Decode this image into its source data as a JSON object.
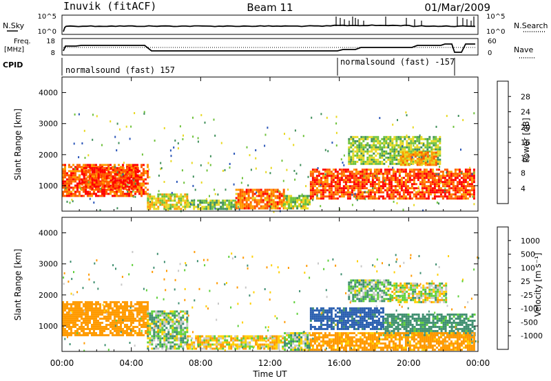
{
  "header": {
    "station": "Inuvik (fitACF)",
    "beam": "Beam 11",
    "date": "01/Mar/2009"
  },
  "noise_panel": {
    "left_label": "N.Sky",
    "right_label": "N.Search",
    "ticks": [
      "10^5",
      "10^0"
    ]
  },
  "freq_panel": {
    "left_label_1": "Freq.",
    "left_label_2": "[MHz]",
    "left_ticks": [
      "18",
      "8"
    ],
    "right_label": "Nave",
    "right_ticks": [
      "60",
      "0"
    ]
  },
  "cpid": {
    "label": "CPID",
    "mode_1": "normalsound (fast) 157",
    "mode_2": "normalsound (fast) -157"
  },
  "colors": {
    "power_scale": [
      "#1f3fff",
      "#2a55b8",
      "#3f8f5a",
      "#6fc23c",
      "#e8d820",
      "#ff9a00",
      "#ff5a00",
      "#ff0000"
    ],
    "velocity_scale": [
      "#1030c0",
      "#2a5fb0",
      "#3f8f70",
      "#5fd03a",
      "#c8c8c8",
      "#ffd000",
      "#ff9a00",
      "#ff6000",
      "#ff0000"
    ]
  },
  "chart_data": [
    {
      "type": "heatmap",
      "title": "",
      "xlabel": "Time UT",
      "ylabel": "Slant Range [km]",
      "xticks": [
        "00:00",
        "04:00",
        "08:00",
        "12:00",
        "16:00",
        "20:00",
        "00:00"
      ],
      "yticks": [
        "1000",
        "2000",
        "3000",
        "4000"
      ],
      "xlim": [
        0,
        24
      ],
      "ylim": [
        180,
        4500
      ],
      "colorbar": {
        "label": "Power [dB]",
        "ticks": [
          "4",
          "8",
          "12",
          "16",
          "20",
          "24",
          "28"
        ],
        "range": [
          0,
          32
        ]
      },
      "bands": [
        {
          "t0": 0.0,
          "t1": 4.9,
          "r0": 700,
          "r1": 1700,
          "level": 26
        },
        {
          "t0": 1.1,
          "t1": 4.4,
          "r0": 900,
          "r1": 1600,
          "level": 28
        },
        {
          "t0": 4.9,
          "t1": 7.2,
          "r0": 250,
          "r1": 750,
          "level": 18
        },
        {
          "t0": 7.2,
          "t1": 10.0,
          "r0": 250,
          "r1": 550,
          "level": 14
        },
        {
          "t0": 10.0,
          "t1": 12.8,
          "r0": 250,
          "r1": 900,
          "level": 24
        },
        {
          "t0": 12.8,
          "t1": 14.3,
          "r0": 250,
          "r1": 700,
          "level": 16
        },
        {
          "t0": 14.3,
          "t1": 23.8,
          "r0": 600,
          "r1": 1550,
          "level": 27
        },
        {
          "t0": 16.5,
          "t1": 21.8,
          "r0": 1700,
          "r1": 2600,
          "level": 15
        },
        {
          "t0": 19.5,
          "t1": 21.6,
          "r0": 1700,
          "r1": 2100,
          "level": 22
        }
      ]
    },
    {
      "type": "heatmap",
      "title": "",
      "xlabel": "Time UT",
      "ylabel": "Slant Range [km]",
      "xticks": [
        "00:00",
        "04:00",
        "08:00",
        "12:00",
        "16:00",
        "20:00",
        "00:00"
      ],
      "yticks": [
        "1000",
        "2000",
        "3000",
        "4000"
      ],
      "xlim": [
        0,
        24
      ],
      "ylim": [
        180,
        4500
      ],
      "colorbar": {
        "label": "Velocity [m s⁻¹]",
        "ticks": [
          "1000",
          "500",
          "100",
          "25",
          "-25",
          "-100",
          "-500",
          "-1000"
        ]
      },
      "bands": [
        {
          "t0": 0.0,
          "t1": 4.9,
          "r0": 700,
          "r1": 1800,
          "level": -300
        },
        {
          "t0": 4.9,
          "t1": 7.2,
          "r0": 250,
          "r1": 1500,
          "level": 60
        },
        {
          "t0": 7.2,
          "t1": 12.8,
          "r0": 250,
          "r1": 700,
          "level": -60
        },
        {
          "t0": 12.8,
          "t1": 14.3,
          "r0": 250,
          "r1": 800,
          "level": 40
        },
        {
          "t0": 14.3,
          "t1": 18.5,
          "r0": 900,
          "r1": 1600,
          "level": 600
        },
        {
          "t0": 18.5,
          "t1": 23.8,
          "r0": 700,
          "r1": 1400,
          "level": 200
        },
        {
          "t0": 14.3,
          "t1": 23.8,
          "r0": 250,
          "r1": 800,
          "level": -200
        },
        {
          "t0": 19.0,
          "t1": 22.2,
          "r0": 1800,
          "r1": 2400,
          "level": 0
        },
        {
          "t0": 16.5,
          "t1": 19.0,
          "r0": 1800,
          "r1": 2500,
          "level": 80
        }
      ]
    }
  ]
}
